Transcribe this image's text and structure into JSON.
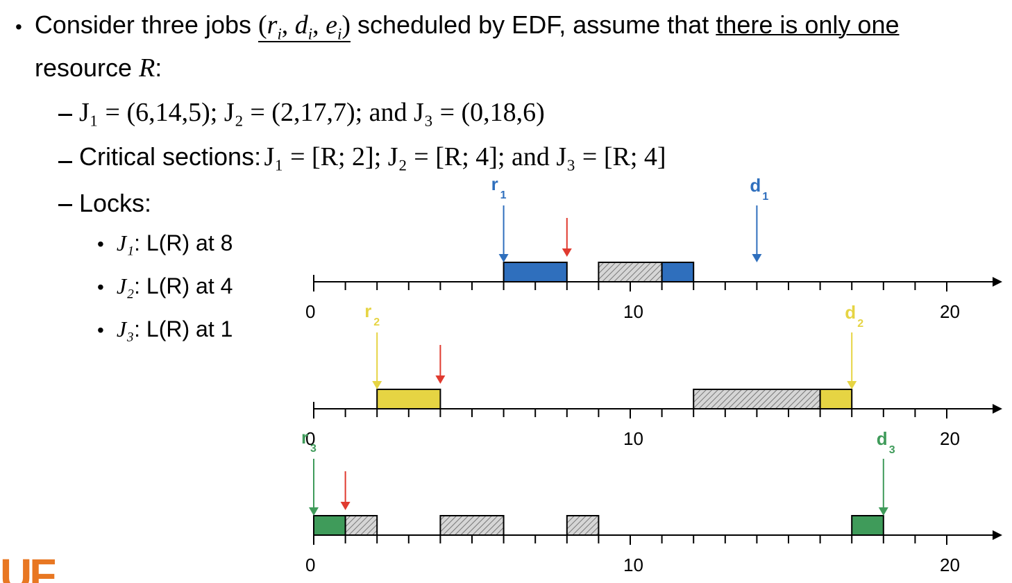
{
  "intro": {
    "bullet": "•",
    "text_before": "Consider three jobs",
    "tuple": "(r",
    "tuple_sub_i": "i",
    "tuple_mid1": ", d",
    "tuple_mid2": ", e",
    "tuple_end": ")",
    "text_mid": "scheduled by EDF, assume that",
    "underlined": "there is only one",
    "line2": "resource",
    "resource": "R",
    "colon": ":"
  },
  "jobs_line": {
    "text": "J₁ = (6,14,5); J₂ = (2,17,7); and J₃ = (0,18,6)"
  },
  "critical_line": {
    "label": "Critical sections:",
    "text": "J₁ = [R; 2]; J₂ = [R; 4]; and J₃ = [R; 4]"
  },
  "locks": {
    "label": "Locks:",
    "items": [
      {
        "job": "J₁",
        "text": ": L(R) at 8"
      },
      {
        "job": "J₂",
        "text": ": L(R) at 4"
      },
      {
        "job": "J₃",
        "text": ": L(R) at 1"
      }
    ]
  },
  "colors": {
    "j1": "#2f6fbd",
    "j2": "#e6d443",
    "j3": "#3f9b5a",
    "lock_arrow": "#e03a2f",
    "blocked_fill": "#cfcfcf",
    "axis": "#000000"
  },
  "timelines": [
    {
      "job": "J1",
      "color_key": "j1",
      "release": {
        "label": "r",
        "sub": "1",
        "t": 6
      },
      "deadline": {
        "label": "d",
        "sub": "1",
        "t": 14
      },
      "lock_t": 8,
      "segments": [
        {
          "start": 6,
          "end": 8,
          "kind": "exec"
        },
        {
          "start": 9,
          "end": 11,
          "kind": "blocked"
        },
        {
          "start": 11,
          "end": 12,
          "kind": "exec"
        }
      ],
      "tick_labels": [
        "0",
        "10",
        "20"
      ]
    },
    {
      "job": "J2",
      "color_key": "j2",
      "release": {
        "label": "r",
        "sub": "2",
        "t": 2
      },
      "deadline": {
        "label": "d",
        "sub": "2",
        "t": 17
      },
      "lock_t": 4,
      "segments": [
        {
          "start": 2,
          "end": 4,
          "kind": "exec"
        },
        {
          "start": 12,
          "end": 16,
          "kind": "blocked"
        },
        {
          "start": 16,
          "end": 17,
          "kind": "exec"
        }
      ],
      "tick_labels": [
        "0",
        "10",
        "20"
      ]
    },
    {
      "job": "J3",
      "color_key": "j3",
      "release": {
        "label": "r",
        "sub": "3",
        "t": 0
      },
      "deadline": {
        "label": "d",
        "sub": "3",
        "t": 18
      },
      "lock_t": 1,
      "segments": [
        {
          "start": 0,
          "end": 1,
          "kind": "exec"
        },
        {
          "start": 1,
          "end": 2,
          "kind": "blocked"
        },
        {
          "start": 4,
          "end": 6,
          "kind": "blocked"
        },
        {
          "start": 8,
          "end": 9,
          "kind": "blocked"
        },
        {
          "start": 17,
          "end": 18,
          "kind": "exec"
        }
      ],
      "tick_labels": [
        "0",
        "10",
        "20"
      ]
    }
  ],
  "logo": {
    "text": "UF",
    "color": "#e87722"
  }
}
